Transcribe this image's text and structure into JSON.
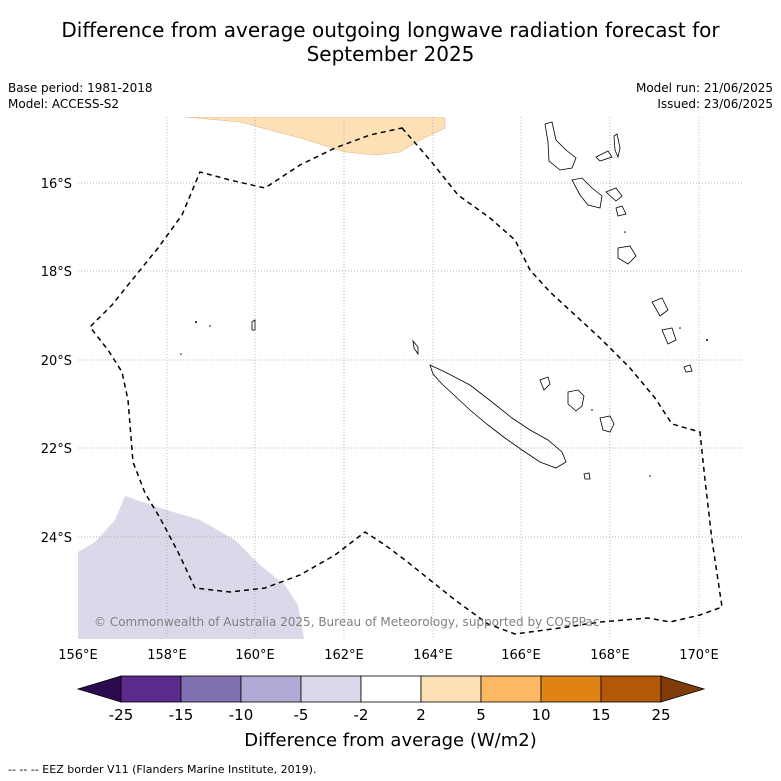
{
  "title_line1": "Difference from average outgoing longwave radiation forecast for",
  "title_line2": "September 2025",
  "base_period": "Base period: 1981-2018",
  "model": "Model: ACCESS-S2",
  "model_run": "Model run: 21/06/2025",
  "issued": "Issued: 23/06/2025",
  "copyright": "© Commonwealth of Australia 2025, Bureau of Meteorology, supported by COSPPac",
  "lon_ticks": [
    "156°E",
    "158°E",
    "160°E",
    "162°E",
    "164°E",
    "166°E",
    "168°E",
    "170°E"
  ],
  "lat_ticks": [
    "16°S",
    "18°S",
    "20°S",
    "22°S",
    "24°S"
  ],
  "colorbar": {
    "ticks": [
      "-25",
      "-15",
      "-10",
      "-5",
      "-2",
      "2",
      "5",
      "10",
      "15",
      "25"
    ],
    "colors": [
      "#2d0a4e",
      "#5a2a8c",
      "#8070b0",
      "#b0aad5",
      "#d9d9ea",
      "#ffffff",
      "#fde0b5",
      "#fdb863",
      "#e08214",
      "#b35806",
      "#7f3b08"
    ],
    "label": "Difference from average (W/m2)"
  },
  "footnote": "-- -- -- EEZ border V11 (Flanders Marine Institute, 2019)."
}
